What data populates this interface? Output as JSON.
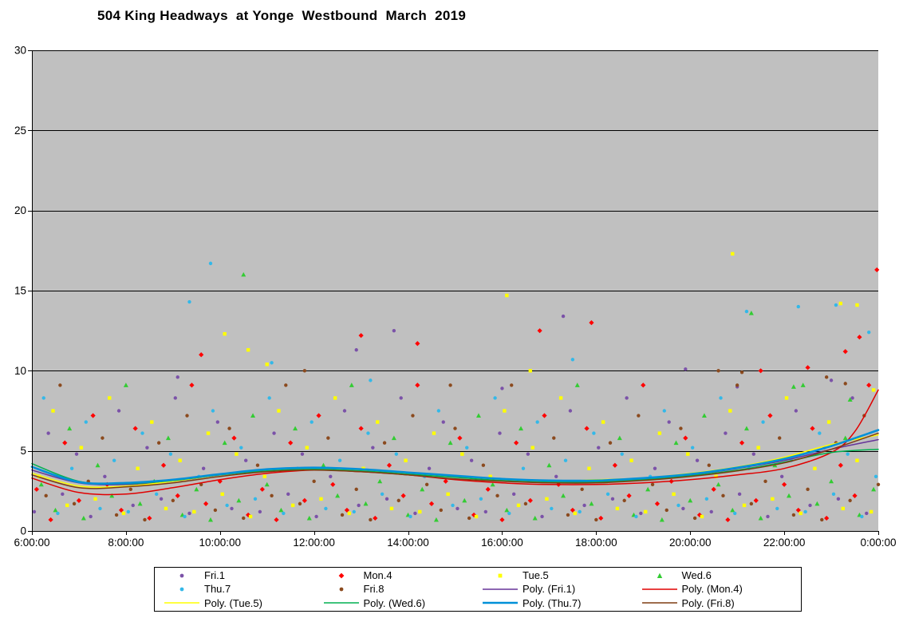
{
  "chart_data": {
    "type": "scatter",
    "title": "504 King Headways  at Yonge  Westbound  March  2019",
    "plot_bg": "#C0C0C0",
    "x_axis": {
      "min": 6,
      "max": 24,
      "tick_hours": [
        6,
        8,
        10,
        12,
        14,
        16,
        18,
        20,
        22,
        24
      ],
      "tick_labels": [
        "6:00:00",
        "8:00:00",
        "10:00:00",
        "12:00:00",
        "14:00:00",
        "16:00:00",
        "18:00:00",
        "20:00:00",
        "22:00:00",
        "0:00:00"
      ]
    },
    "y_axis": {
      "min": 0,
      "max": 30,
      "ticks": [
        0,
        5,
        10,
        15,
        20,
        25,
        30
      ]
    },
    "series": [
      {
        "name": "Fri.1",
        "marker": "circle",
        "color": "#7B52A8",
        "x_start": 6.05,
        "x_step": 0.3,
        "y": [
          1.2,
          6.1,
          2.3,
          4.8,
          0.9,
          3.4,
          7.5,
          1.6,
          5.2,
          2.0,
          8.3,
          1.1,
          3.9,
          6.8,
          1.4,
          4.4,
          1.2,
          6.1,
          2.3,
          4.8,
          0.9,
          3.4,
          7.5,
          1.6,
          5.2,
          2.0,
          8.3,
          1.1,
          3.9,
          6.8,
          1.4,
          4.4,
          1.2,
          6.1,
          2.3,
          4.8,
          0.9,
          3.4,
          7.5,
          1.6,
          5.2,
          2.0,
          8.3,
          1.1,
          3.9,
          6.8,
          1.4,
          4.4,
          1.2,
          6.1,
          2.3,
          4.8,
          0.9,
          3.4,
          7.5,
          1.6,
          5.2,
          2.0,
          8.3,
          1.1
        ],
        "extra": [
          [
            9.1,
            9.6
          ],
          [
            12.9,
            11.3
          ],
          [
            13.7,
            12.5
          ],
          [
            16.0,
            8.9
          ],
          [
            17.3,
            13.4
          ],
          [
            19.9,
            10.1
          ],
          [
            21.0,
            9.0
          ],
          [
            23.0,
            9.4
          ]
        ]
      },
      {
        "name": "Mon.4",
        "marker": "diamond",
        "color": "#FF0000",
        "x_start": 6.1,
        "x_step": 0.3,
        "y": [
          2.6,
          0.7,
          5.5,
          1.9,
          7.2,
          2.9,
          1.3,
          6.4,
          0.8,
          4.1,
          2.2,
          9.1,
          1.7,
          3.1,
          5.8,
          1.0,
          2.6,
          0.7,
          5.5,
          1.9,
          7.2,
          2.9,
          1.3,
          6.4,
          0.8,
          4.1,
          2.2,
          9.1,
          1.7,
          3.1,
          5.8,
          1.0,
          2.6,
          0.7,
          5.5,
          1.9,
          7.2,
          2.9,
          1.3,
          6.4,
          0.8,
          4.1,
          2.2,
          9.1,
          1.7,
          3.1,
          5.8,
          1.0,
          2.6,
          0.7,
          5.5,
          1.9,
          7.2,
          2.9,
          1.3,
          6.4,
          0.8,
          4.1,
          2.2,
          9.1
        ],
        "extra": [
          [
            9.6,
            11.0
          ],
          [
            13.0,
            12.2
          ],
          [
            14.2,
            11.7
          ],
          [
            16.8,
            12.5
          ],
          [
            17.9,
            13.0
          ],
          [
            21.5,
            10.0
          ],
          [
            22.5,
            10.2
          ],
          [
            23.3,
            11.2
          ],
          [
            23.6,
            12.1
          ],
          [
            23.97,
            16.3
          ]
        ]
      },
      {
        "name": "Tue.5",
        "marker": "square",
        "color": "#FFFF00",
        "x_start": 6.15,
        "x_step": 0.3,
        "y": [
          3.4,
          7.5,
          1.6,
          5.2,
          2.0,
          8.3,
          1.1,
          3.9,
          6.8,
          1.4,
          4.4,
          1.2,
          6.1,
          2.3,
          4.8,
          0.9,
          3.4,
          7.5,
          1.6,
          5.2,
          2.0,
          8.3,
          1.1,
          3.9,
          6.8,
          1.4,
          4.4,
          1.2,
          6.1,
          2.3,
          4.8,
          0.9,
          3.4,
          7.5,
          1.6,
          5.2,
          2.0,
          8.3,
          1.1,
          3.9,
          6.8,
          1.4,
          4.4,
          1.2,
          6.1,
          2.3,
          4.8,
          0.9,
          3.4,
          7.5,
          1.6,
          5.2,
          2.0,
          8.3,
          1.1,
          3.9,
          6.8,
          1.4,
          4.4,
          1.2
        ],
        "extra": [
          [
            10.1,
            12.3
          ],
          [
            10.6,
            11.3
          ],
          [
            11.0,
            10.4
          ],
          [
            16.1,
            14.7
          ],
          [
            16.6,
            10.0
          ],
          [
            20.9,
            17.3
          ],
          [
            23.2,
            14.2
          ],
          [
            23.55,
            14.1
          ],
          [
            23.9,
            8.8
          ]
        ]
      },
      {
        "name": "Wed.6",
        "marker": "triangle",
        "color": "#33CC33",
        "x_start": 6.2,
        "x_step": 0.3,
        "y": [
          2.9,
          1.3,
          6.4,
          0.8,
          4.1,
          2.2,
          9.1,
          1.7,
          3.1,
          5.8,
          1.0,
          2.6,
          0.7,
          5.5,
          1.9,
          7.2,
          2.9,
          1.3,
          6.4,
          0.8,
          4.1,
          2.2,
          9.1,
          1.7,
          3.1,
          5.8,
          1.0,
          2.6,
          0.7,
          5.5,
          1.9,
          7.2,
          2.9,
          1.3,
          6.4,
          0.8,
          4.1,
          2.2,
          9.1,
          1.7,
          3.1,
          5.8,
          1.0,
          2.6,
          0.7,
          5.5,
          1.9,
          7.2,
          2.9,
          1.3,
          6.4,
          0.8,
          4.1,
          2.2,
          9.1,
          1.7,
          3.1,
          5.8,
          1.0,
          2.6
        ],
        "extra": [
          [
            10.5,
            16.0
          ],
          [
            21.3,
            13.6
          ],
          [
            22.2,
            9.0
          ],
          [
            23.4,
            8.2
          ]
        ]
      },
      {
        "name": "Thu.7",
        "marker": "circle",
        "color": "#33B8E8",
        "x_start": 6.25,
        "x_step": 0.3,
        "y": [
          8.3,
          1.1,
          3.9,
          6.8,
          1.4,
          4.4,
          1.2,
          6.1,
          2.3,
          4.8,
          0.9,
          3.4,
          7.5,
          1.6,
          5.2,
          2.0,
          8.3,
          1.1,
          3.9,
          6.8,
          1.4,
          4.4,
          1.2,
          6.1,
          2.3,
          4.8,
          0.9,
          3.4,
          7.5,
          1.6,
          5.2,
          2.0,
          8.3,
          1.1,
          3.9,
          6.8,
          1.4,
          4.4,
          1.2,
          6.1,
          2.3,
          4.8,
          0.9,
          3.4,
          7.5,
          1.6,
          5.2,
          2.0,
          8.3,
          1.1,
          3.9,
          6.8,
          1.4,
          4.4,
          1.2,
          6.1,
          2.3,
          4.8,
          0.9,
          3.4
        ],
        "extra": [
          [
            9.35,
            14.3
          ],
          [
            9.8,
            16.7
          ],
          [
            11.1,
            10.5
          ],
          [
            13.2,
            9.4
          ],
          [
            17.5,
            10.7
          ],
          [
            21.2,
            13.7
          ],
          [
            22.3,
            14.0
          ],
          [
            23.1,
            14.1
          ],
          [
            23.8,
            12.4
          ]
        ]
      },
      {
        "name": "Fri.8",
        "marker": "circle",
        "color": "#8B4A1E",
        "x_start": 6.3,
        "x_step": 0.3,
        "y": [
          2.2,
          9.1,
          1.7,
          3.1,
          5.8,
          1.0,
          2.6,
          0.7,
          5.5,
          1.9,
          7.2,
          2.9,
          1.3,
          6.4,
          0.8,
          4.1,
          2.2,
          9.1,
          1.7,
          3.1,
          5.8,
          1.0,
          2.6,
          0.7,
          5.5,
          1.9,
          7.2,
          2.9,
          1.3,
          6.4,
          0.8,
          4.1,
          2.2,
          9.1,
          1.7,
          3.1,
          5.8,
          1.0,
          2.6,
          0.7,
          5.5,
          1.9,
          7.2,
          2.9,
          1.3,
          6.4,
          0.8,
          4.1,
          2.2,
          9.1,
          1.7,
          3.1,
          5.8,
          1.0,
          2.6,
          0.7,
          5.5,
          1.9,
          7.2,
          2.9
        ],
        "extra": [
          [
            11.8,
            10.0
          ],
          [
            14.9,
            9.1
          ],
          [
            20.6,
            10.0
          ],
          [
            21.1,
            9.9
          ],
          [
            22.9,
            9.6
          ],
          [
            23.3,
            9.2
          ]
        ]
      }
    ],
    "trends": [
      {
        "name": "Poly. (Fri.1)",
        "color": "#663399",
        "width": 1.5,
        "points": [
          [
            6,
            3.8
          ],
          [
            7,
            3.0
          ],
          [
            8,
            2.9
          ],
          [
            9,
            3.1
          ],
          [
            10,
            3.5
          ],
          [
            11,
            3.8
          ],
          [
            12,
            3.9
          ],
          [
            13,
            3.8
          ],
          [
            14,
            3.6
          ],
          [
            15,
            3.4
          ],
          [
            16,
            3.2
          ],
          [
            17,
            3.1
          ],
          [
            18,
            3.1
          ],
          [
            19,
            3.2
          ],
          [
            20,
            3.5
          ],
          [
            21,
            3.9
          ],
          [
            22,
            4.4
          ],
          [
            23,
            5.1
          ],
          [
            24,
            5.7
          ]
        ]
      },
      {
        "name": "Poly. (Mon.4)",
        "color": "#E00000",
        "width": 1.5,
        "points": [
          [
            6,
            3.3
          ],
          [
            7,
            2.4
          ],
          [
            8,
            2.3
          ],
          [
            9,
            2.7
          ],
          [
            10,
            3.2
          ],
          [
            11,
            3.6
          ],
          [
            12,
            3.8
          ],
          [
            13,
            3.7
          ],
          [
            14,
            3.5
          ],
          [
            15,
            3.2
          ],
          [
            16,
            3.0
          ],
          [
            17,
            2.9
          ],
          [
            18,
            2.9
          ],
          [
            19,
            3.0
          ],
          [
            20,
            3.2
          ],
          [
            21,
            3.5
          ],
          [
            22,
            3.9
          ],
          [
            23,
            4.9
          ],
          [
            23.5,
            6.2
          ],
          [
            24,
            8.8
          ]
        ]
      },
      {
        "name": "Poly. (Tue.5)",
        "color": "#FFFF00",
        "width": 1.5,
        "points": [
          [
            6,
            3.6
          ],
          [
            7,
            2.8
          ],
          [
            8,
            2.8
          ],
          [
            9,
            3.1
          ],
          [
            10,
            3.5
          ],
          [
            11,
            3.8
          ],
          [
            12,
            3.9
          ],
          [
            13,
            3.8
          ],
          [
            14,
            3.6
          ],
          [
            15,
            3.4
          ],
          [
            16,
            3.2
          ],
          [
            17,
            3.1
          ],
          [
            18,
            3.2
          ],
          [
            19,
            3.3
          ],
          [
            20,
            3.6
          ],
          [
            21,
            4.0
          ],
          [
            22,
            4.6
          ],
          [
            23,
            5.4
          ],
          [
            24,
            6.0
          ]
        ]
      },
      {
        "name": "Poly. (Wed.6)",
        "color": "#00B050",
        "width": 1.5,
        "points": [
          [
            6,
            4.2
          ],
          [
            7,
            3.1
          ],
          [
            8,
            2.95
          ],
          [
            9,
            3.15
          ],
          [
            10,
            3.5
          ],
          [
            11,
            3.75
          ],
          [
            12,
            3.85
          ],
          [
            13,
            3.75
          ],
          [
            14,
            3.55
          ],
          [
            15,
            3.35
          ],
          [
            16,
            3.15
          ],
          [
            17,
            3.05
          ],
          [
            18,
            3.05
          ],
          [
            19,
            3.2
          ],
          [
            20,
            3.45
          ],
          [
            21,
            3.8
          ],
          [
            22,
            4.3
          ],
          [
            23,
            4.9
          ],
          [
            24,
            5.1
          ]
        ]
      },
      {
        "name": "Poly. (Thu.7)",
        "color": "#0090D8",
        "width": 2.6,
        "points": [
          [
            6,
            4.0
          ],
          [
            7,
            3.05
          ],
          [
            8,
            3.0
          ],
          [
            9,
            3.2
          ],
          [
            10,
            3.55
          ],
          [
            11,
            3.85
          ],
          [
            12,
            3.95
          ],
          [
            13,
            3.85
          ],
          [
            14,
            3.65
          ],
          [
            15,
            3.45
          ],
          [
            16,
            3.25
          ],
          [
            17,
            3.15
          ],
          [
            18,
            3.15
          ],
          [
            19,
            3.3
          ],
          [
            20,
            3.55
          ],
          [
            21,
            3.95
          ],
          [
            22,
            4.5
          ],
          [
            23,
            5.3
          ],
          [
            24,
            6.3
          ]
        ]
      },
      {
        "name": "Poly. (Fri.8)",
        "color": "#7E3D12",
        "width": 1.5,
        "points": [
          [
            6,
            3.5
          ],
          [
            7,
            2.7
          ],
          [
            8,
            2.75
          ],
          [
            9,
            3.0
          ],
          [
            10,
            3.4
          ],
          [
            11,
            3.7
          ],
          [
            12,
            3.8
          ],
          [
            13,
            3.7
          ],
          [
            14,
            3.5
          ],
          [
            15,
            3.25
          ],
          [
            16,
            3.1
          ],
          [
            17,
            3.0
          ],
          [
            18,
            3.0
          ],
          [
            19,
            3.15
          ],
          [
            20,
            3.4
          ],
          [
            21,
            3.75
          ],
          [
            22,
            4.25
          ],
          [
            23,
            5.1
          ],
          [
            24,
            6.1
          ]
        ]
      }
    ],
    "legend": {
      "items": [
        {
          "label": "Fri.1",
          "swatch": "circle",
          "color": "#7B52A8"
        },
        {
          "label": "Mon.4",
          "swatch": "diamond",
          "color": "#FF0000"
        },
        {
          "label": "Tue.5",
          "swatch": "square",
          "color": "#FFFF00"
        },
        {
          "label": "Wed.6",
          "swatch": "triangle",
          "color": "#33CC33"
        },
        {
          "label": "Thu.7",
          "swatch": "circle",
          "color": "#33B8E8"
        },
        {
          "label": "Fri.8",
          "swatch": "circle",
          "color": "#8B4A1E"
        },
        {
          "label": "Poly. (Fri.1)",
          "swatch": "line",
          "color": "#663399",
          "width": 1.5
        },
        {
          "label": "Poly. (Mon.4)",
          "swatch": "line",
          "color": "#E00000",
          "width": 1.5
        },
        {
          "label": "Poly. (Tue.5)",
          "swatch": "line",
          "color": "#FFFF00",
          "width": 1.5
        },
        {
          "label": "Poly. (Wed.6)",
          "swatch": "line",
          "color": "#00B050",
          "width": 1.5
        },
        {
          "label": "Poly. (Thu.7)",
          "swatch": "line",
          "color": "#0090D8",
          "width": 2.6
        },
        {
          "label": "Poly. (Fri.8)",
          "swatch": "line",
          "color": "#7E3D12",
          "width": 1.5
        }
      ]
    }
  }
}
